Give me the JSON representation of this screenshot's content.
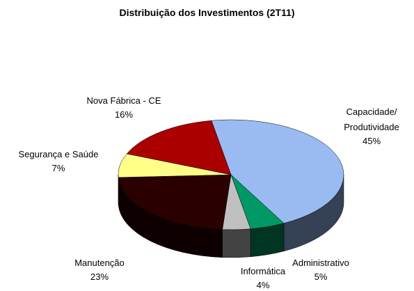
{
  "chart_data": {
    "type": "pie3d",
    "title": "Distribuição dos Investimentos (2T11)",
    "categories": [
      "Capacidade/\nProdutividade",
      "Administrativo",
      "Informática",
      "Manutenção",
      "Segurança e Saúde",
      "Nova Fábrica - CE"
    ],
    "values": [
      45,
      5,
      4,
      23,
      7,
      16
    ],
    "value_labels": [
      "45%",
      "5%",
      "4%",
      "23%",
      "7%",
      "16%"
    ],
    "colors": [
      "#99bbf2",
      "#009966",
      "#c0c0c0",
      "#2a0000",
      "#ffff88",
      "#aa0000"
    ]
  }
}
